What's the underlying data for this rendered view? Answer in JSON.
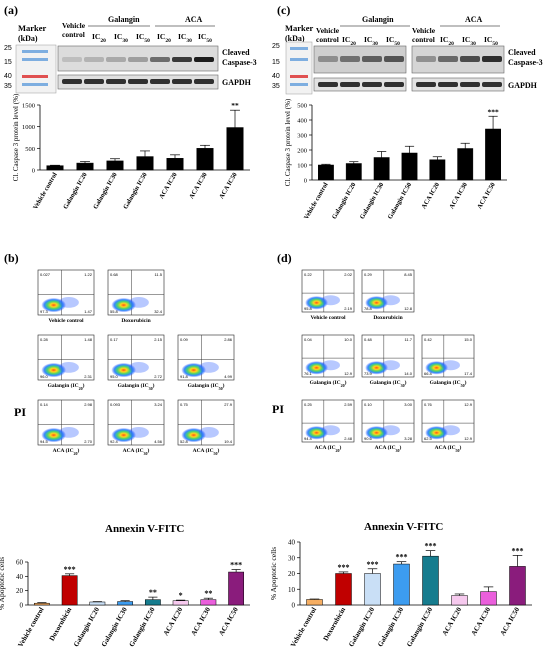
{
  "colors": {
    "bar_black": "#000000",
    "vehicle": "#f6ae62",
    "doxorubicin": "#c00000",
    "galangin_ic20": "#c9dff6",
    "galangin_ic30": "#3c9cf0",
    "galangin_ic50": "#167c8e",
    "aca_ic20": "#f6c9ee",
    "aca_ic30": "#ea5fdc",
    "aca_ic50": "#8a1c7c"
  },
  "panels": {
    "a": {
      "tag": "(a)",
      "marker_label": "Marker",
      "marker_unit": "(kDa)",
      "marker_kda": [
        "25",
        "15",
        "40",
        "35"
      ],
      "lane_vehicle": [
        "Vehicle",
        "control"
      ],
      "group_galangin": "Galangin",
      "group_aca": "ACA",
      "lane_ic": [
        "IC",
        "IC",
        "IC",
        "IC",
        "IC",
        "IC"
      ],
      "lane_ic_sub": [
        "20",
        "30",
        "50",
        "20",
        "30",
        "50"
      ],
      "band_cleaved": [
        "Cleaved",
        "Caspase-3"
      ],
      "band_gapdh": "GAPDH"
    },
    "c": {
      "tag": "(c)",
      "marker_label": "Marker",
      "marker_unit": "(kDa)",
      "marker_kda": [
        "25",
        "15",
        "40",
        "35"
      ],
      "lane_vehicle": [
        "Vehicle",
        "control"
      ],
      "lane_vehicle2": [
        "Vehicle",
        "control"
      ],
      "group_galangin": "Galangin",
      "group_aca": "ACA",
      "lane_ic": [
        "IC",
        "IC",
        "IC",
        "IC",
        "IC",
        "IC"
      ],
      "lane_ic_sub": [
        "20",
        "30",
        "50",
        "20",
        "30",
        "50"
      ],
      "band_cleaved": [
        "Cleaved",
        "Caspase-3"
      ],
      "band_gapdh": "GAPDH"
    },
    "b": {
      "tag": "(b)",
      "ylabel": "PI",
      "xlabel": "Annexin V-FITC",
      "plots": [
        {
          "label": "Vehicle control",
          "sub": "",
          "q": [
            "0.027",
            "1.22",
            "97.3",
            "1.47"
          ]
        },
        {
          "label": "Doxorubicin",
          "sub": "",
          "q": [
            "0.68",
            "11.5",
            "55.8",
            "32.4"
          ]
        },
        {
          "label": "Galangin (IC",
          "sub": "20",
          "q": [
            "0.28",
            "1.48",
            "96.0",
            "2.31"
          ]
        },
        {
          "label": "Galangin (IC",
          "sub": "30",
          "q": [
            "0.17",
            "2.15",
            "95.0",
            "2.72"
          ]
        },
        {
          "label": "Galangin (IC",
          "sub": "50",
          "q": [
            "0.09",
            "2.86",
            "91.8",
            "4.99"
          ]
        },
        {
          "label": "ACA (IC",
          "sub": "20",
          "q": [
            "0.14",
            "2.98",
            "94.5",
            "2.70"
          ]
        },
        {
          "label": "ACA (IC",
          "sub": "30",
          "q": [
            "0.093",
            "3.24",
            "92.4",
            "4.56"
          ]
        },
        {
          "label": "ACA (IC",
          "sub": "50",
          "q": [
            "0.75",
            "27.9",
            "52.8",
            "19.4"
          ]
        }
      ]
    },
    "d": {
      "tag": "(d)",
      "ylabel": "PI",
      "xlabel": "Annexin V-FITC",
      "plots": [
        {
          "label": "Vehicle control",
          "sub": "",
          "q": [
            "0.22",
            "2.02",
            "95.8",
            "2.19"
          ]
        },
        {
          "label": "Doxorubicin",
          "sub": "",
          "q": [
            "0.29",
            "8.45",
            "78.8",
            "12.8"
          ]
        },
        {
          "label": "Galangin (IC",
          "sub": "20",
          "q": [
            "0.04",
            "10.0",
            "76.1",
            "12.9"
          ]
        },
        {
          "label": "Galangin (IC",
          "sub": "30",
          "q": [
            "0.48",
            "11.7",
            "73.9",
            "14.0"
          ]
        },
        {
          "label": "Galangin (IC",
          "sub": "50",
          "q": [
            "0.42",
            "15.0",
            "66.4",
            "17.4"
          ]
        },
        {
          "label": "ACA (IC",
          "sub": "20",
          "q": [
            "0.25",
            "2.59",
            "94.4",
            "2.48"
          ]
        },
        {
          "label": "ACA (IC",
          "sub": "30",
          "q": [
            "0.10",
            "3.00",
            "90.6",
            "3.28"
          ]
        },
        {
          "label": "ACA (IC",
          "sub": "50",
          "q": [
            "0.76",
            "12.9",
            "62.5",
            "12.9"
          ]
        }
      ]
    }
  },
  "chart_data": [
    {
      "id": "a",
      "type": "bar",
      "categories": [
        "Vehicle control",
        "Galangin IC20",
        "Galangin IC30",
        "Galangin IC50",
        "ACA IC20",
        "ACA IC30",
        "ACA IC50"
      ],
      "values": [
        100,
        160,
        210,
        310,
        270,
        500,
        980
      ],
      "errors": [
        10,
        35,
        50,
        130,
        80,
        70,
        400
      ],
      "annotations": [
        "",
        "",
        "",
        "",
        "",
        "",
        "**"
      ],
      "ylabel": "Cl. Caspase 3 protein level (%)",
      "ylim": [
        0,
        1500
      ],
      "yticks": [
        0,
        500,
        1000,
        1500
      ],
      "colors": [
        "bar_black",
        "bar_black",
        "bar_black",
        "bar_black",
        "bar_black",
        "bar_black",
        "bar_black"
      ]
    },
    {
      "id": "c",
      "type": "bar",
      "categories": [
        "Vehicle control",
        "Galangin IC20",
        "Galangin IC30",
        "Galangin IC50",
        "ACA IC20",
        "ACA IC30",
        "ACA IC50"
      ],
      "values": [
        100,
        110,
        150,
        180,
        135,
        210,
        340
      ],
      "errors": [
        5,
        12,
        40,
        45,
        20,
        35,
        85
      ],
      "annotations": [
        "",
        "",
        "",
        "",
        "",
        "",
        "***"
      ],
      "ylabel": "Cl. Caspase 3 protein level (%)",
      "ylim": [
        0,
        500
      ],
      "yticks": [
        0,
        100,
        200,
        300,
        400,
        500
      ],
      "colors": [
        "bar_black",
        "bar_black",
        "bar_black",
        "bar_black",
        "bar_black",
        "bar_black",
        "bar_black"
      ]
    },
    {
      "id": "b2",
      "type": "bar",
      "categories": [
        "Vehicle control",
        "Doxorubicin",
        "Galangin IC20",
        "Galangin IC30",
        "Galangin IC50",
        "ACA IC20",
        "ACA IC30",
        "ACA IC50"
      ],
      "values": [
        2.5,
        41,
        4.2,
        4.8,
        7.5,
        6.0,
        7.5,
        46
      ],
      "errors": [
        0.8,
        2.5,
        0.5,
        1.2,
        3.5,
        0.8,
        2.0,
        3.5
      ],
      "annotations": [
        "",
        "***",
        "",
        "",
        "**",
        "*",
        "**",
        "***"
      ],
      "ylabel": "% Apoptotic cells",
      "ylim": [
        0,
        60
      ],
      "yticks": [
        0,
        20,
        40,
        60
      ],
      "colors": [
        "vehicle",
        "doxorubicin",
        "galangin_ic20",
        "galangin_ic30",
        "galangin_ic50",
        "aca_ic20",
        "aca_ic30",
        "aca_ic50"
      ]
    },
    {
      "id": "d2",
      "type": "bar",
      "categories": [
        "Vehicle control",
        "Doxorubicin",
        "Galangin IC20",
        "Galangin IC30",
        "Galangin IC50",
        "ACA IC20",
        "ACA IC30",
        "ACA IC50"
      ],
      "values": [
        3.5,
        20,
        20,
        26,
        31,
        6,
        8.5,
        24.5
      ],
      "errors": [
        0.3,
        1,
        3,
        1.5,
        3.5,
        1,
        3,
        7
      ],
      "annotations": [
        "",
        "***",
        "***",
        "***",
        "***",
        "",
        "",
        "***"
      ],
      "ylabel": "% Apoptotic cells",
      "ylim": [
        0,
        40
      ],
      "yticks": [
        0,
        10,
        20,
        30,
        40
      ],
      "colors": [
        "vehicle",
        "doxorubicin",
        "galangin_ic20",
        "galangin_ic30",
        "galangin_ic50",
        "aca_ic20",
        "aca_ic30",
        "aca_ic50"
      ]
    }
  ]
}
